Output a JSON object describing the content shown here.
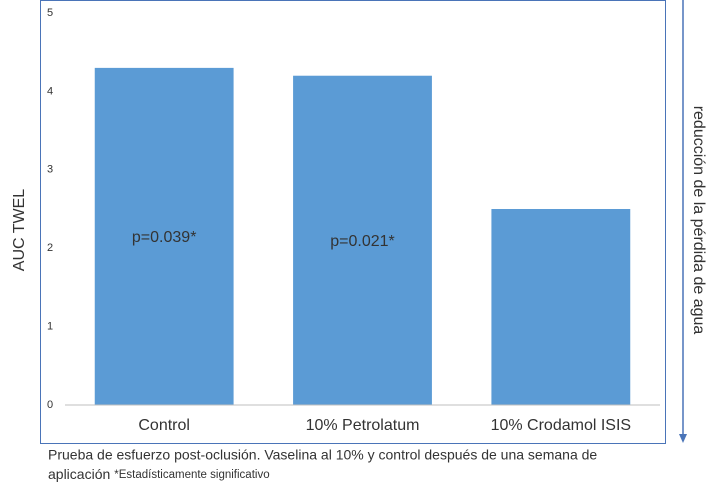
{
  "chart_data": {
    "type": "bar",
    "y_label": "AUC TWEL",
    "right_label": "reducción de la pérdida de agua",
    "categories": [
      "Control",
      "10% Petrolatum",
      "10% Crodamol ISIS"
    ],
    "values": [
      4.3,
      4.2,
      2.5
    ],
    "color": "#5b9bd5",
    "annotations": [
      "p=0.039*",
      "p=0.021*"
    ],
    "ylim": [
      0,
      5
    ],
    "yticks": [
      0,
      1,
      2,
      3,
      4,
      5
    ],
    "caption": [
      "Prueba de esfuerzo post-oclusión. Vaselina al 10% y control después de una semana de",
      "aplicación",
      "*Estadísticamente significativo"
    ]
  }
}
